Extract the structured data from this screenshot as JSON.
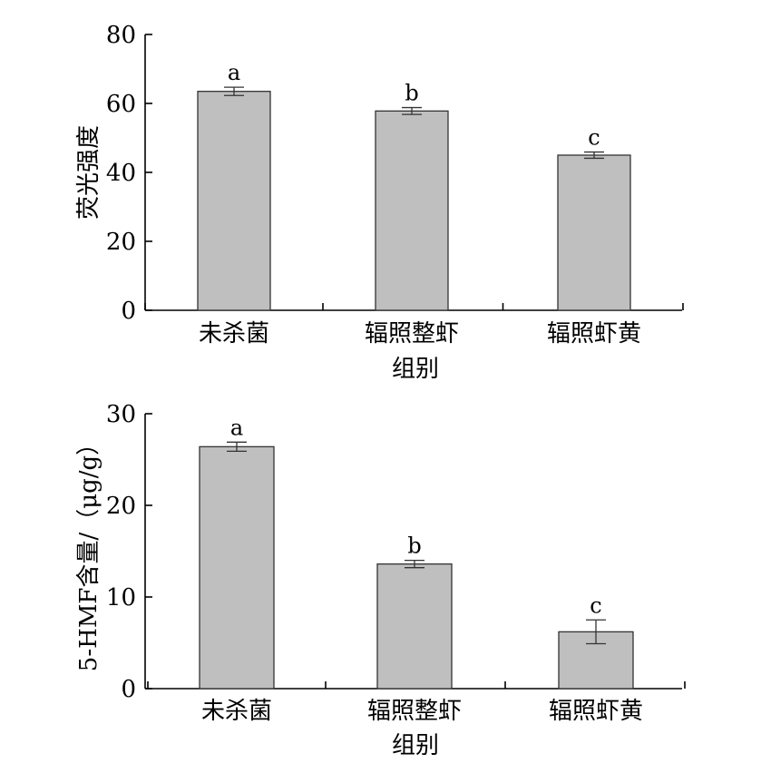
{
  "chart_data": [
    {
      "type": "bar",
      "categories": [
        "未杀菌",
        "辐照整虾",
        "辐照虾黄"
      ],
      "values": [
        63.5,
        57.8,
        45.0
      ],
      "errors": [
        1.2,
        1.0,
        0.9
      ],
      "significance": [
        "a",
        "b",
        "c"
      ],
      "xlabel": "组别",
      "ylabel": "荧光强度",
      "ylim": [
        0,
        80
      ],
      "yticks": [
        "0",
        "20",
        "40",
        "60",
        "80"
      ],
      "bar_color": "#bfbfbf",
      "grid": false
    },
    {
      "type": "bar",
      "categories": [
        "未杀菌",
        "辐照整虾",
        "辐照虾黄"
      ],
      "values": [
        26.4,
        13.6,
        6.2
      ],
      "errors": [
        0.5,
        0.4,
        1.3
      ],
      "significance": [
        "a",
        "b",
        "c"
      ],
      "xlabel": "组别",
      "ylabel": "5-HMF含量/（μg/g）",
      "ylim": [
        0,
        30
      ],
      "yticks": [
        "0",
        "10",
        "20",
        "30"
      ],
      "bar_color": "#bfbfbf",
      "grid": false
    }
  ]
}
